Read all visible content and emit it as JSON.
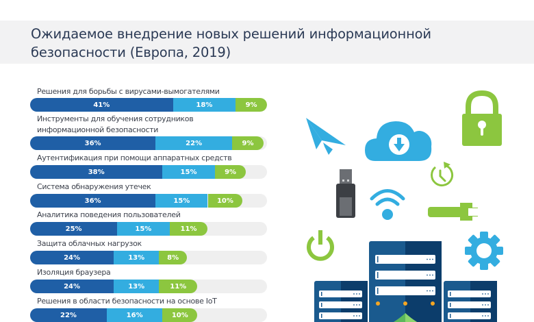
{
  "header": {
    "title": "Ожидаемое внедрение новых решений информационной безопасности (Европа, 2019)"
  },
  "colors": {
    "dark_blue": "#1f5fa6",
    "light_blue": "#33ade0",
    "green": "#8cc63f",
    "track": "#efefef",
    "title_text": "#2b3a55",
    "server_dark": "#0c3d6b",
    "server_mid": "#1a5a8e",
    "orange_led": "#f5a623"
  },
  "chart_data": {
    "type": "bar",
    "orientation": "horizontal-stacked",
    "title": "Ожидаемое внедрение новых решений информационной безопасности (Европа, 2019)",
    "xlabel": "",
    "ylabel": "",
    "xlim": [
      0,
      68
    ],
    "grid": false,
    "legend": "none",
    "categories": [
      "Решения для борьбы с вирусами-вымогателями",
      "Инструменты для обучения сотрудников информационной безопасности",
      "Аутентификация при помощи аппаратных средств",
      "Система обнаружения утечек",
      "Аналитика поведения пользователей",
      "Защита облачных нагрузок",
      "Изоляция браузера",
      "Решения в области безопасности на основе IoT"
    ],
    "label_lines": [
      [
        "Решения для борьбы с вирусами-вымогателями"
      ],
      [
        "Инструменты для обучения сотрудников",
        "информационной безопасности"
      ],
      [
        "Аутентификация при помощи аппаратных средств"
      ],
      [
        "Система обнаружения утечек"
      ],
      [
        "Аналитика поведения пользователей"
      ],
      [
        "Защита облачных нагрузок"
      ],
      [
        "Изоляция браузера"
      ],
      [
        "Решения в области безопасности на основе IoT"
      ]
    ],
    "series": [
      {
        "name": "segment-1",
        "color": "#1f5fa6",
        "values": [
          41,
          36,
          38,
          36,
          25,
          24,
          24,
          22
        ]
      },
      {
        "name": "segment-2",
        "color": "#33ade0",
        "values": [
          18,
          22,
          15,
          15,
          15,
          13,
          13,
          16
        ]
      },
      {
        "name": "segment-3",
        "color": "#8cc63f",
        "values": [
          9,
          9,
          9,
          10,
          11,
          8,
          11,
          10
        ]
      }
    ],
    "value_suffix": "%"
  },
  "illustration": {
    "icons": [
      "paper-plane-icon",
      "cloud-download-icon",
      "lock-icon",
      "usb-drive-icon",
      "wifi-icon",
      "clock-refresh-icon",
      "wrench-icon",
      "power-icon",
      "gear-icon",
      "server-rack-icon"
    ]
  }
}
